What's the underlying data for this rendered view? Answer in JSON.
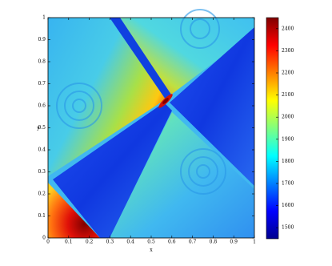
{
  "chart_data": {
    "type": "heatmap",
    "xlabel": "x",
    "ylabel": "y",
    "xlim": [
      0,
      1
    ],
    "ylim": [
      0,
      1
    ],
    "xticks": [
      0,
      0.1,
      0.2,
      0.3,
      0.4,
      0.5,
      0.6,
      0.7,
      0.8,
      0.9,
      1
    ],
    "yticks": [
      0,
      0.1,
      0.2,
      0.3,
      0.4,
      0.5,
      0.6,
      0.7,
      0.8,
      0.9,
      1
    ],
    "colorbar": {
      "clim": [
        1450,
        2450
      ],
      "ticks": [
        1500,
        1600,
        1700,
        1800,
        1900,
        2000,
        2100,
        2200,
        2300,
        2400
      ]
    }
  }
}
